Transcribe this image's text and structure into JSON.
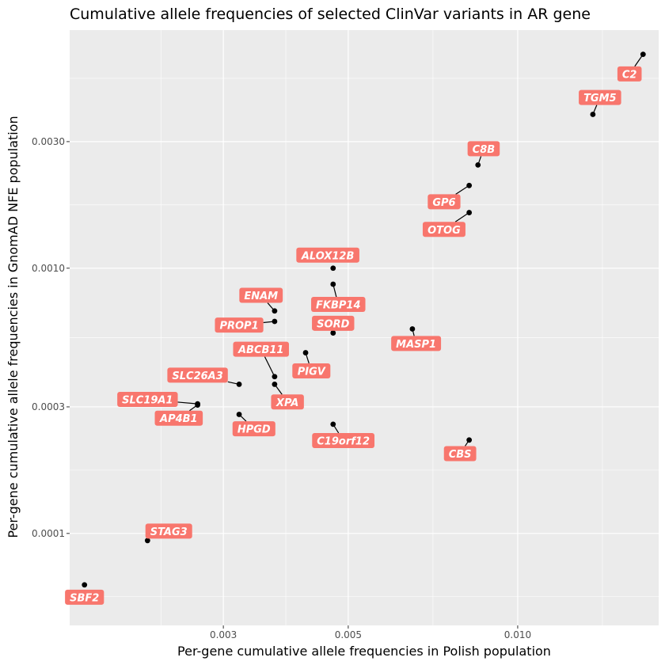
{
  "chart_data": {
    "type": "scatter",
    "title": "Cumulative allele frequencies of selected ClinVar variants in AR gene",
    "xlabel": "Per-gene cumulative allele frequencies in Polish population",
    "ylabel": "Per-gene cumulative allele frequencies in GnomAD NFE population",
    "x_scale": "log10",
    "y_scale": "log10",
    "xlim": [
      0.0016,
      0.0178
    ],
    "ylim": [
      4.5e-05,
      0.0079
    ],
    "x_ticks": [
      {
        "value": 0.003,
        "label": "0.003"
      },
      {
        "value": 0.005,
        "label": "0.005"
      },
      {
        "value": 0.01,
        "label": "0.010"
      }
    ],
    "y_ticks": [
      {
        "value": 0.0001,
        "label": "0.0001"
      },
      {
        "value": 0.0003,
        "label": "0.0003"
      },
      {
        "value": 0.001,
        "label": "0.0010"
      },
      {
        "value": 0.003,
        "label": "0.0030"
      }
    ],
    "grid": true,
    "label_color": "#f8766d",
    "points": [
      {
        "gene": "C2",
        "x": 0.0167,
        "y": 0.0064,
        "lx": 0.0158,
        "ly": 0.0054
      },
      {
        "gene": "TGM5",
        "x": 0.0136,
        "y": 0.0038,
        "lx": 0.014,
        "ly": 0.0044
      },
      {
        "gene": "C8B",
        "x": 0.0085,
        "y": 0.00245,
        "lx": 0.0087,
        "ly": 0.00282
      },
      {
        "gene": "GP6",
        "x": 0.0082,
        "y": 0.00205,
        "lx": 0.0074,
        "ly": 0.00178
      },
      {
        "gene": "OTOG",
        "x": 0.0082,
        "y": 0.00162,
        "lx": 0.0074,
        "ly": 0.0014
      },
      {
        "gene": "ALOX12B",
        "x": 0.0047,
        "y": 0.001,
        "lx": 0.0046,
        "ly": 0.00112
      },
      {
        "gene": "FKBP14",
        "x": 0.0047,
        "y": 0.00087,
        "lx": 0.0048,
        "ly": 0.00073
      },
      {
        "gene": "ENAM",
        "x": 0.0037,
        "y": 0.00069,
        "lx": 0.0035,
        "ly": 0.00079
      },
      {
        "gene": "PROP1",
        "x": 0.0037,
        "y": 0.00063,
        "lx": 0.0032,
        "ly": 0.00061
      },
      {
        "gene": "SORD",
        "x": 0.0047,
        "y": 0.00057,
        "lx": 0.0047,
        "ly": 0.00062
      },
      {
        "gene": "MASP1",
        "x": 0.0065,
        "y": 0.00059,
        "lx": 0.0066,
        "ly": 0.00052
      },
      {
        "gene": "ABCB11",
        "x": 0.0037,
        "y": 0.00039,
        "lx": 0.0035,
        "ly": 0.000495
      },
      {
        "gene": "PIGV",
        "x": 0.0042,
        "y": 0.00048,
        "lx": 0.0043,
        "ly": 0.00041
      },
      {
        "gene": "SLC26A3",
        "x": 0.0032,
        "y": 0.000365,
        "lx": 0.0027,
        "ly": 0.000395
      },
      {
        "gene": "XPA",
        "x": 0.0037,
        "y": 0.000365,
        "lx": 0.0039,
        "ly": 0.000313
      },
      {
        "gene": "SLC19A1",
        "x": 0.0027,
        "y": 0.000308,
        "lx": 0.0022,
        "ly": 0.00032
      },
      {
        "gene": "AP4B1",
        "x": 0.0027,
        "y": 0.000305,
        "lx": 0.0025,
        "ly": 0.000272
      },
      {
        "gene": "HPGD",
        "x": 0.0032,
        "y": 0.000281,
        "lx": 0.0034,
        "ly": 0.000248
      },
      {
        "gene": "C19orf12",
        "x": 0.0047,
        "y": 0.000258,
        "lx": 0.0049,
        "ly": 0.000224
      },
      {
        "gene": "CBS",
        "x": 0.0082,
        "y": 0.000225,
        "lx": 0.0079,
        "ly": 0.0002
      },
      {
        "gene": "STAG3",
        "x": 0.0022,
        "y": 9.4e-05,
        "lx": 0.0024,
        "ly": 0.000102
      },
      {
        "gene": "SBF2",
        "x": 0.0017,
        "y": 6.4e-05,
        "lx": 0.0017,
        "ly": 5.75e-05
      }
    ]
  }
}
